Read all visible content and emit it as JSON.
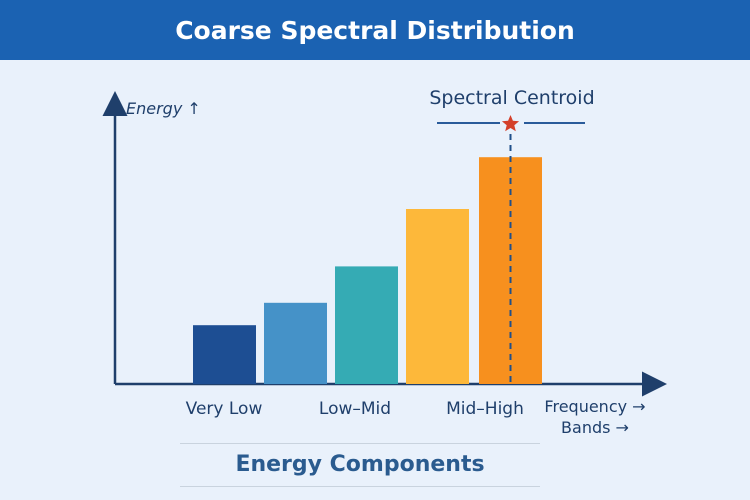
{
  "header": {
    "title": "Coarse Spectral Distribution"
  },
  "chart_data": {
    "type": "bar",
    "title": "Coarse Spectral Distribution",
    "ylabel": "Energy ↑",
    "xlabel_lines": [
      "Frequency →",
      "Bands →"
    ],
    "tick_labels": [
      "Very Low",
      "Low–Mid",
      "Mid–High"
    ],
    "values": [
      2.1,
      2.9,
      4.2,
      6.25,
      8.1
    ],
    "colors": [
      "#1d4e93",
      "#4592c8",
      "#35abb4",
      "#fdb83a",
      "#f7901e"
    ],
    "ylim": [
      0,
      10
    ],
    "grid": false,
    "annotation": {
      "label": "Spectral Centroid",
      "bar_index": 4,
      "marker": "star",
      "marker_color": "#d4402a"
    },
    "footer": "Energy Components"
  }
}
